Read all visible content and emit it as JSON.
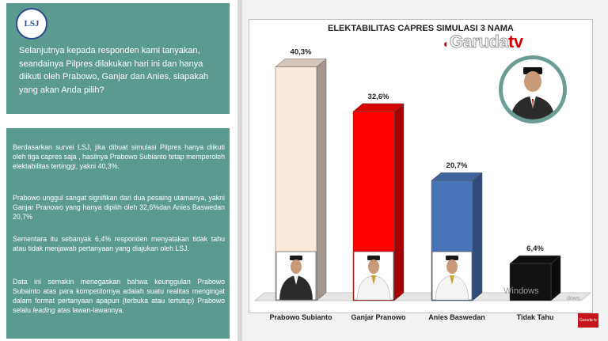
{
  "logo": {
    "text": "LSJ"
  },
  "question": "Selanjutnya kepada responden kami tanyakan, seandainya Pilpres dilakukan hari ini dan hanya diikuti oleh Prabowo, Ganjar dan Anies, siapakah yang akan Anda pilih?",
  "paragraphs": [
    "Berdasarkan survei LSJ, jika dibuat simulasi Pilpres hanya diikuti oleh tiga capres saja , hasilnya Prabowo Subianto tetap memperoleh elektabilitas tertinggi, yakni 40,3%.",
    "Prabowo unggul sangat signifikan dari dua pesaing utamanya, yakni Ganjar Pranowo yang hanya dipilih oleh 32,6%dan Anies Baswedan 20,7%",
    "Sementara itu sebanyak 6,4% responden menyatakan tidak tahu atau tidak menjawab pertanyaan yang diajukan oleh LSJ.",
    "Data ini semakin menegaskan bahwa keunggulan Prabowo Subainto atas para kompetitornya adalah suatu realitas mengingat dalam format pertanyaan apapun (terbuka atau tertutup) Prabowo selalu leading atas lawan-lawannya."
  ],
  "brand": {
    "name": "Garuda",
    "suffix": "tv"
  },
  "watermark": {
    "line1": "Windows",
    "line2": "dows."
  },
  "corner_badge": "Garuda tv",
  "chart_data": {
    "type": "bar",
    "title": "ELEKTABILITAS CAPRES SIMULASI 3 NAMA",
    "categories": [
      "Prabowo Subianto",
      "Ganjar Pranowo",
      "Anies Baswedan",
      "Tidak Tahu"
    ],
    "values": [
      40.3,
      32.6,
      20.7,
      6.4
    ],
    "data_labels": [
      "40,3%",
      "32,6%",
      "20,7%",
      "6,4%"
    ],
    "colors": [
      "#fbe9dc",
      "#ff0000",
      "#4a74b8",
      "#111111"
    ],
    "ylim": [
      0,
      45
    ],
    "grid": false,
    "legend": "none"
  }
}
